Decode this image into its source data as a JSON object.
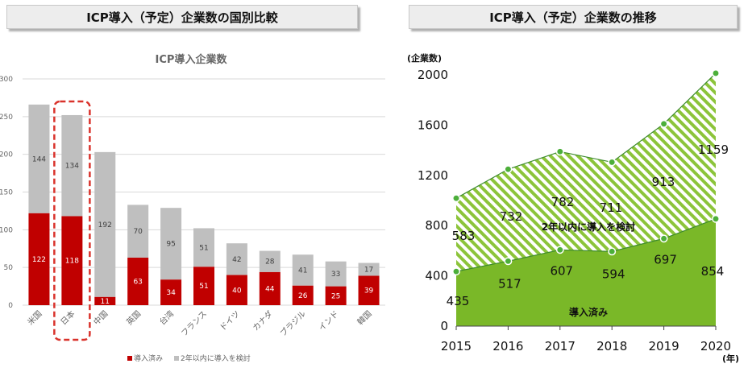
{
  "panels": {
    "left_title": "ICP導入（予定）企業数の国別比較",
    "right_title": "ICP導入（予定）企業数の推移"
  },
  "chart_data": [
    {
      "type": "bar",
      "stacked": true,
      "title": "ICP導入企業数",
      "categories": [
        "米国",
        "日本",
        "中国",
        "英国",
        "台湾",
        "フランス",
        "ドイツ",
        "カナダ",
        "ブラジル",
        "インド",
        "韓国"
      ],
      "series": [
        {
          "name": "導入済み",
          "color": "#c00000",
          "values": [
            122,
            118,
            11,
            63,
            34,
            51,
            40,
            44,
            26,
            25,
            39
          ]
        },
        {
          "name": "2年以内に導入を検討",
          "color": "#bfbfbf",
          "values": [
            144,
            134,
            192,
            70,
            95,
            51,
            42,
            28,
            41,
            33,
            17
          ]
        }
      ],
      "yticks": [
        0,
        50,
        100,
        150,
        200,
        250,
        300
      ],
      "ylim": [
        0,
        300
      ],
      "highlight_category": "日本",
      "legend_position": "bottom",
      "grid": true
    },
    {
      "type": "area",
      "stacked": true,
      "ylabel": "(企業数)",
      "xlabel": "(年)",
      "x": [
        2015,
        2016,
        2017,
        2018,
        2019,
        2020
      ],
      "series": [
        {
          "name": "導入済み",
          "color": "#7ab828",
          "values": [
            435,
            517,
            607,
            594,
            697,
            854
          ]
        },
        {
          "name": "2年以内に導入を検討",
          "color": "#7ab828",
          "pattern": "hatched",
          "values": [
            583,
            732,
            782,
            711,
            913,
            1159
          ]
        }
      ],
      "yticks": [
        0,
        400,
        800,
        1200,
        1600,
        2000
      ],
      "ylim": [
        0,
        2000
      ],
      "grid": false
    }
  ]
}
